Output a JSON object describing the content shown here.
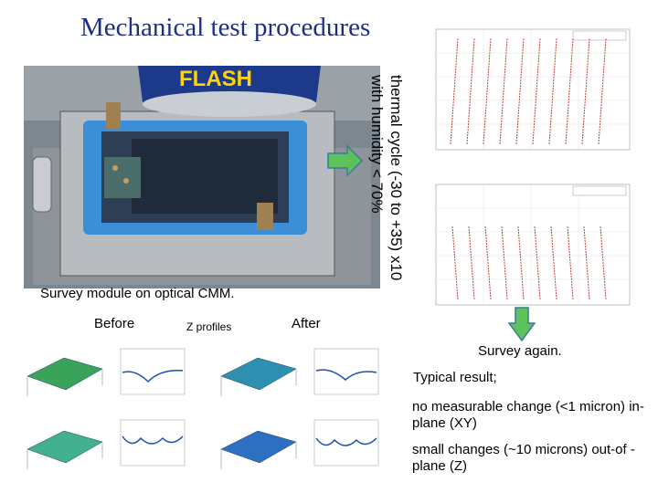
{
  "slide": {
    "title": "Mechanical test procedures",
    "thermal_label_line1": "thermal cycle (-30 to +35) x10",
    "thermal_label_line2": "with humidity < 70%",
    "survey_caption": "Survey module on optical CMM.",
    "before_label": "Before",
    "z_profiles_label": "Z profiles",
    "after_label": "After",
    "survey_again": "Survey again.",
    "typical_result": "Typical result;",
    "result_inplane": "no measurable change (<1 micron) in-plane (XY)",
    "result_outplane": "small changes (~10 microns) out-of -plane (Z)",
    "photo_logo": "FLASH"
  },
  "colors": {
    "title": "#1f2f80",
    "arrow_fill": "#5ec25a",
    "arrow_stroke": "#3a7a9a",
    "frame_blue": "#3a8fd6",
    "curve_red": "#c0443c"
  }
}
